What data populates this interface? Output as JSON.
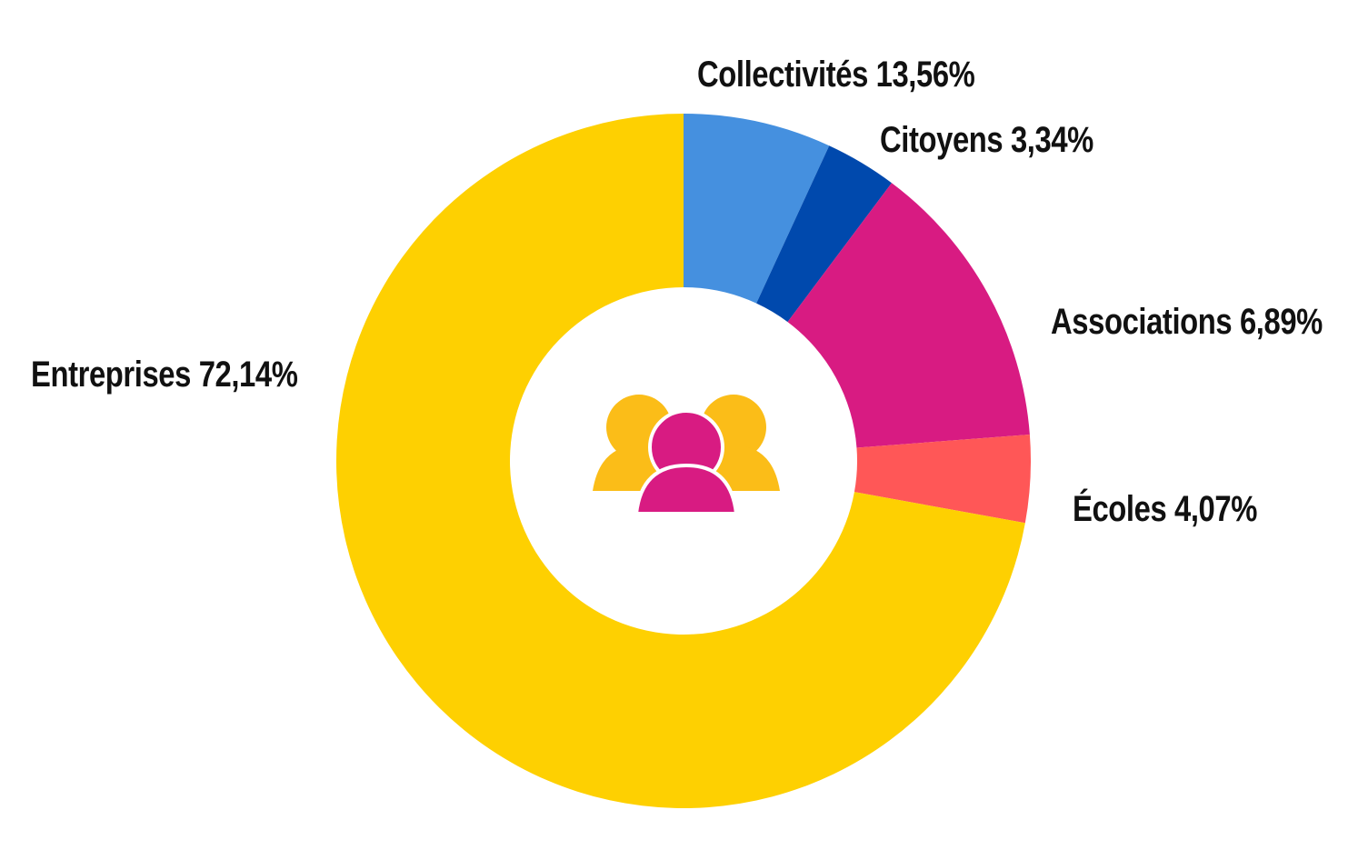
{
  "chart_data": {
    "type": "pie",
    "variant": "donut",
    "title": "",
    "slices": [
      {
        "label": "Associations",
        "value": 6.89,
        "value_text": "6,89%",
        "color": "#4590df"
      },
      {
        "label": "Citoyens",
        "value": 3.34,
        "value_text": "3,34%",
        "color": "#0049ad"
      },
      {
        "label": "Collectivités",
        "value": 13.56,
        "value_text": "13,56%",
        "color": "#d81b82"
      },
      {
        "label": "Écoles",
        "value": 4.07,
        "value_text": "4,07%",
        "color": "#ff5757"
      },
      {
        "label": "Entreprises",
        "value": 72.14,
        "value_text": "72,14%",
        "color": "#fed001"
      }
    ],
    "center_icon": "users-group-icon",
    "icon_colors": {
      "back": "#fbbd18",
      "front": "#d81b82"
    }
  }
}
